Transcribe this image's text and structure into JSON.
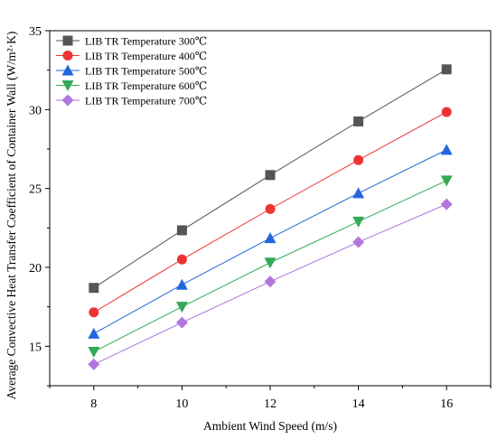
{
  "chart_data": {
    "type": "line",
    "xlabel": "Ambient Wind Speed (m/s)",
    "ylabel": "Average Convective Heat Transfer Coefficient of Container Wall (W/m²·K)",
    "x": [
      8,
      10,
      12,
      14,
      16
    ],
    "xticks": [
      "8",
      "10",
      "12",
      "14",
      "16"
    ],
    "yticks": [
      "15",
      "20",
      "25",
      "30",
      "35"
    ],
    "xlim": [
      7,
      17
    ],
    "ylim": [
      12.5,
      35
    ],
    "grid": false,
    "legend_position": "top-left",
    "series": [
      {
        "name": "LIB TR Temperature 300℃",
        "values": [
          18.7,
          22.35,
          25.85,
          29.25,
          32.55
        ],
        "color": "#555555",
        "marker": "square"
      },
      {
        "name": "LIB TR Temperature 400℃",
        "values": [
          17.15,
          20.5,
          23.7,
          26.8,
          29.85
        ],
        "color": "#ee3333",
        "marker": "circle"
      },
      {
        "name": "LIB TR Temperature 500℃",
        "values": [
          15.8,
          18.9,
          21.85,
          24.7,
          27.45
        ],
        "color": "#2266dd",
        "marker": "triangle-up"
      },
      {
        "name": "LIB TR Temperature 600℃",
        "values": [
          14.65,
          17.5,
          20.3,
          22.9,
          25.5
        ],
        "color": "#33aa55",
        "marker": "triangle-down"
      },
      {
        "name": "LIB TR Temperature 700℃",
        "values": [
          13.85,
          16.5,
          19.1,
          21.6,
          24.0
        ],
        "color": "#b077dd",
        "marker": "diamond"
      }
    ]
  }
}
